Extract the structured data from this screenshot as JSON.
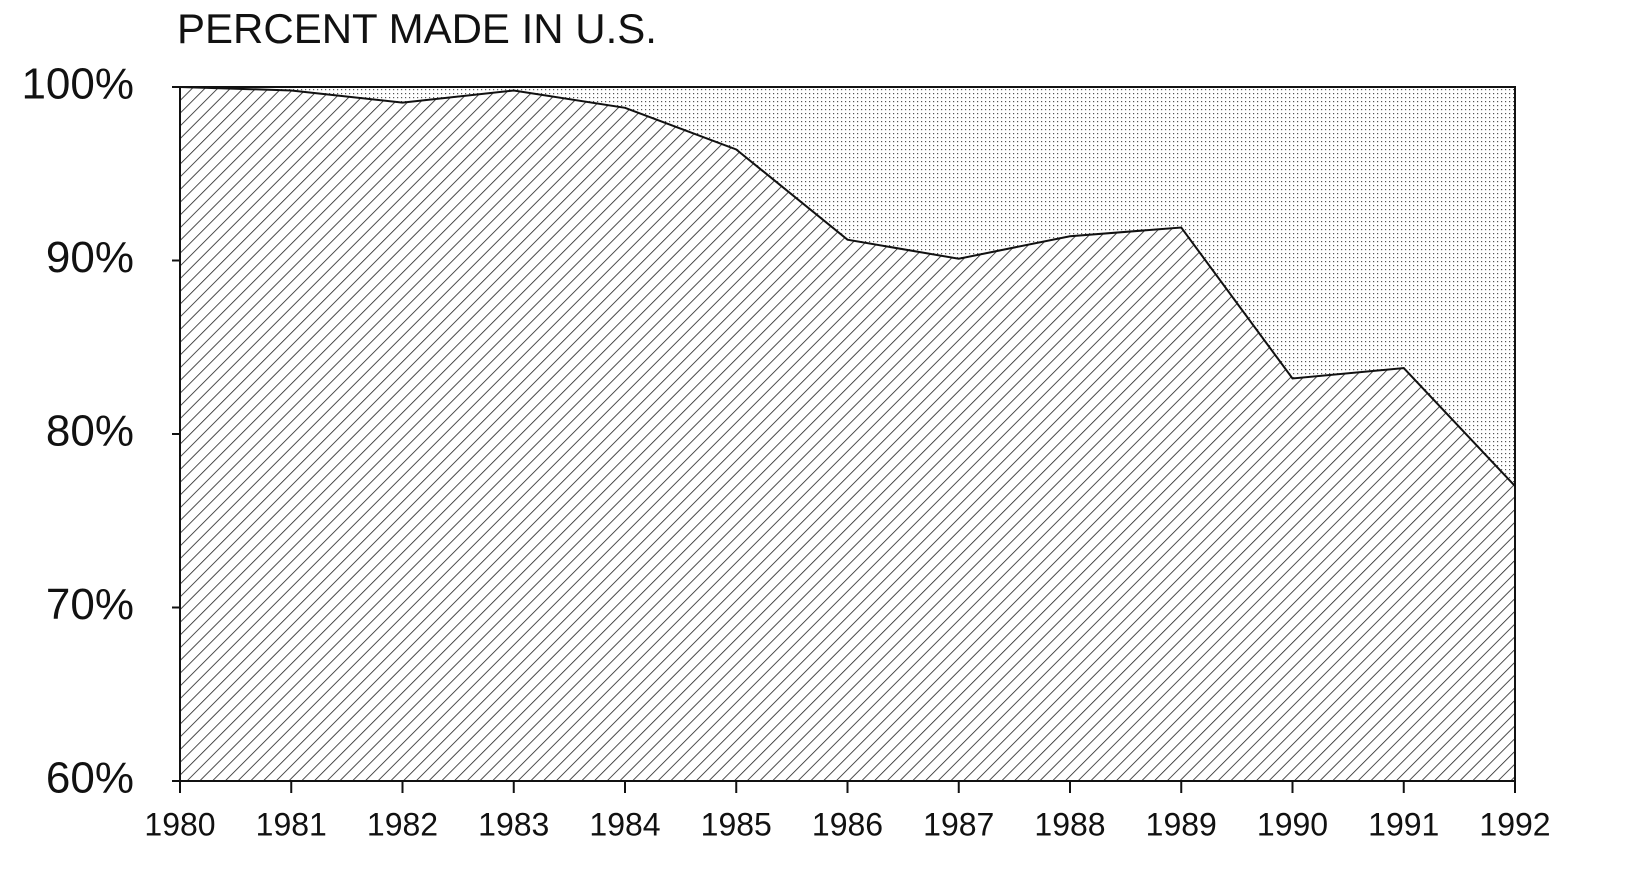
{
  "chart_data": {
    "type": "area",
    "title": "PERCENT MADE IN U.S.",
    "categories": [
      "1980",
      "1981",
      "1982",
      "1983",
      "1984",
      "1985",
      "1986",
      "1987",
      "1988",
      "1989",
      "1990",
      "1991",
      "1992"
    ],
    "values": [
      100,
      99.8,
      99.1,
      99.8,
      98.8,
      96.4,
      91.2,
      90.1,
      91.4,
      91.9,
      83.2,
      83.8,
      77.0
    ],
    "color": "#111111",
    "ylim": [
      60,
      100
    ],
    "yticks": [
      {
        "value": 60,
        "label": "60%"
      },
      {
        "value": 70,
        "label": "70%"
      },
      {
        "value": 80,
        "label": "80%"
      },
      {
        "value": 90,
        "label": "90%"
      },
      {
        "value": 100,
        "label": "100%"
      }
    ]
  }
}
